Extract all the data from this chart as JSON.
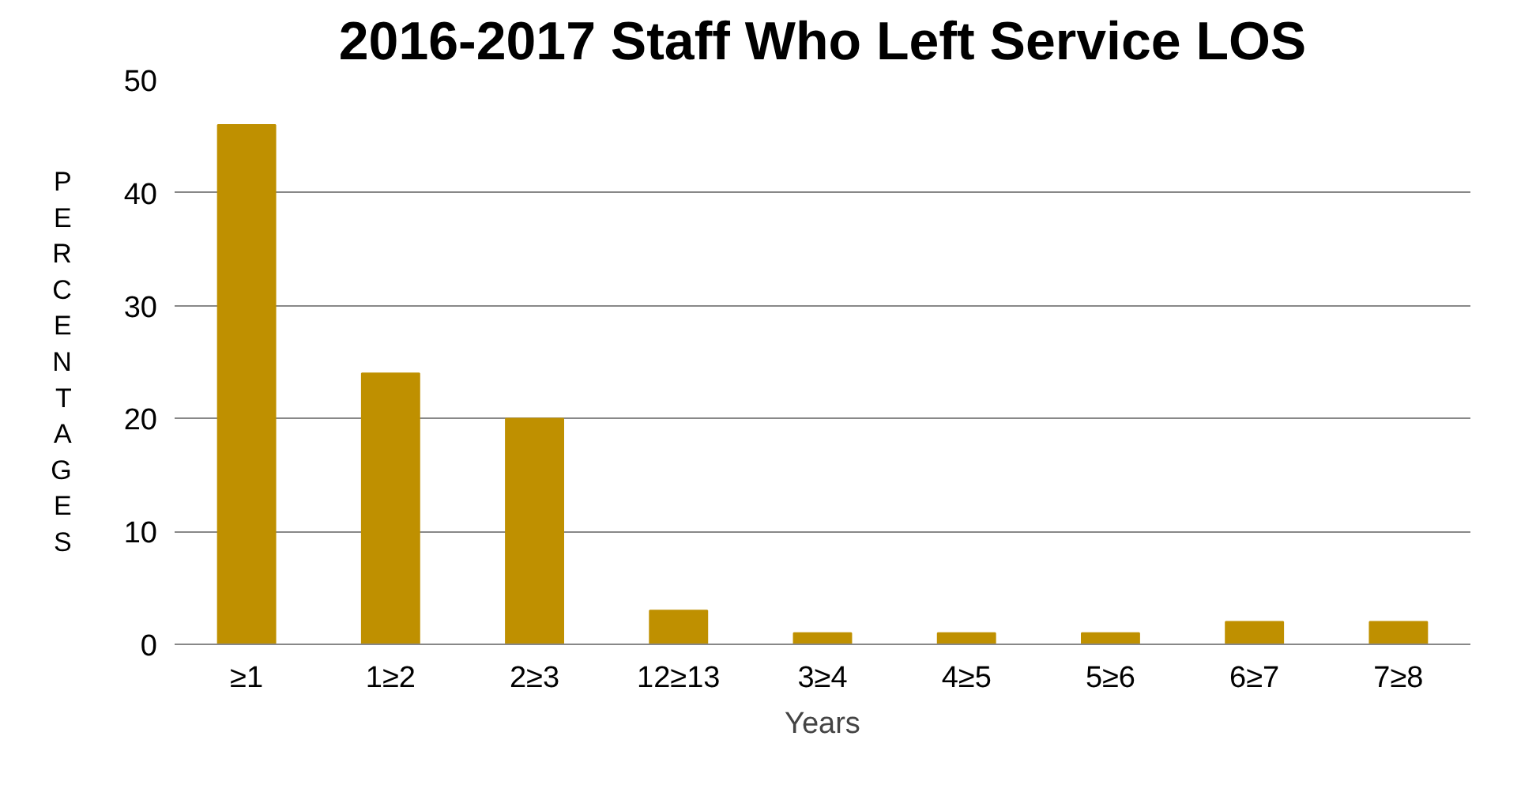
{
  "chart_data": {
    "type": "bar",
    "title": "2016-2017 Staff Who Left Service LOS",
    "xlabel": "Years",
    "ylabel": "PERCENTAGES",
    "categories": [
      "≥1",
      "1≥2",
      "2≥3",
      "12≥13",
      "3≥4",
      "4≥5",
      "5≥6",
      "6≥7",
      "7≥8"
    ],
    "values": [
      46,
      24,
      20,
      3,
      1,
      1,
      1,
      2,
      2
    ],
    "color": "#bf9000",
    "ylim": [
      0,
      50
    ],
    "yticks": [
      0,
      10,
      20,
      30,
      40,
      50
    ],
    "grid": "y"
  }
}
